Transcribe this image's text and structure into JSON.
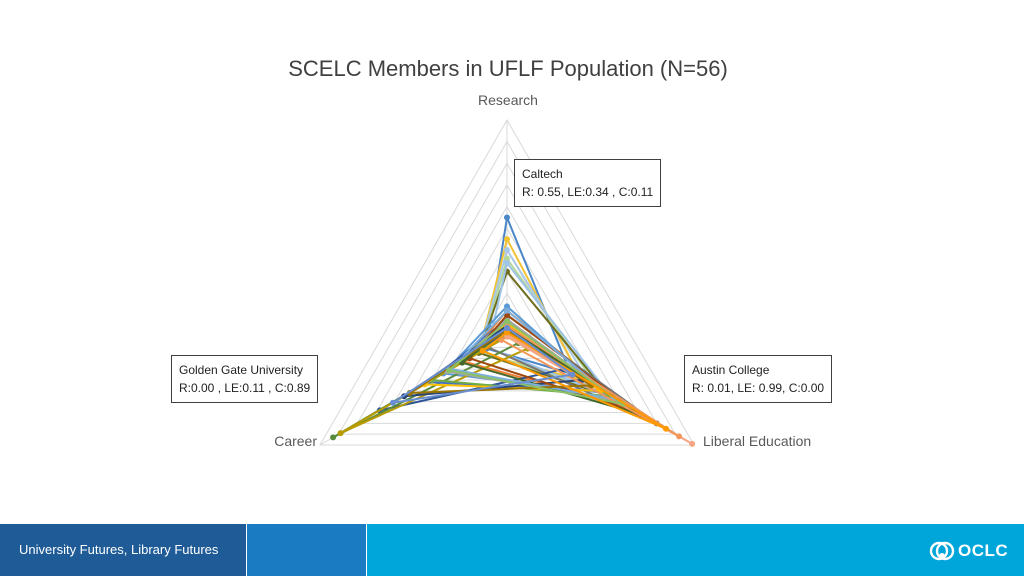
{
  "slide": {
    "footer_text": "University Futures, Library Futures",
    "logo_text": "OCLC"
  },
  "colors": {
    "footer_dark": "#1f5c97",
    "footer_mid": "#1a7ac2",
    "footer_light": "#00a5d9",
    "grid": "#d9d9d9"
  },
  "chart_data": {
    "type": "radar",
    "title": "SCELC Members in UFLF Population (N=56)",
    "axes": [
      "Research",
      "Liberal Education",
      "Career"
    ],
    "range": [
      0,
      1
    ],
    "gridlines": 10,
    "legend": "none",
    "callouts": [
      {
        "institution": "Caltech",
        "values_text": "R: 0.55, LE:0.34 , C:0.11"
      },
      {
        "institution": "Golden Gate University",
        "values_text": "R:0.00 , LE:0.11 , C:0.89"
      },
      {
        "institution": "Austin College",
        "values_text": "R: 0.01, LE: 0.99, C:0.00"
      }
    ],
    "series": [
      {
        "color": "#4a86c8",
        "values": [
          0.55,
          0.34,
          0.11
        ]
      },
      {
        "color": "#f2c233",
        "values": [
          0.45,
          0.4,
          0.15
        ]
      },
      {
        "color": "#a9c8e8",
        "values": [
          0.4,
          0.45,
          0.15
        ]
      },
      {
        "color": "#b4d79a",
        "values": [
          0.36,
          0.5,
          0.14
        ]
      },
      {
        "color": "#6e6e1e",
        "values": [
          0.3,
          0.55,
          0.15
        ]
      },
      {
        "color": "#9dc3e6",
        "values": [
          0.34,
          0.56,
          0.1
        ]
      },
      {
        "color": "#ed7d31",
        "values": [
          0.12,
          0.65,
          0.23
        ]
      },
      {
        "color": "#5b9bd5",
        "values": [
          0.14,
          0.52,
          0.34
        ]
      },
      {
        "color": "#767676",
        "values": [
          0.1,
          0.8,
          0.1
        ]
      },
      {
        "color": "#2e5597",
        "values": [
          0.02,
          0.3,
          0.68
        ]
      },
      {
        "color": "#5a8c3c",
        "values": [
          0.01,
          0.06,
          0.93
        ]
      },
      {
        "color": "#b89b00",
        "values": [
          0.0,
          0.11,
          0.89
        ]
      },
      {
        "color": "#f4a582",
        "values": [
          0.01,
          0.99,
          0.0
        ]
      },
      {
        "color": "#4472c4",
        "values": [
          0.08,
          0.5,
          0.42
        ]
      },
      {
        "color": "#70ad47",
        "values": [
          0.05,
          0.55,
          0.4
        ]
      },
      {
        "color": "#ffc000",
        "values": [
          0.06,
          0.5,
          0.44
        ]
      },
      {
        "color": "#a5a5a5",
        "values": [
          0.08,
          0.6,
          0.32
        ]
      },
      {
        "color": "#264478",
        "values": [
          0.05,
          0.4,
          0.55
        ]
      },
      {
        "color": "#9e480e",
        "values": [
          0.1,
          0.7,
          0.2
        ]
      },
      {
        "color": "#43682b",
        "values": [
          0.04,
          0.72,
          0.24
        ]
      },
      {
        "color": "#7cafdd",
        "values": [
          0.12,
          0.58,
          0.3
        ]
      },
      {
        "color": "#f1975a",
        "values": [
          0.05,
          0.92,
          0.03
        ]
      },
      {
        "color": "#997300",
        "values": [
          0.03,
          0.45,
          0.52
        ]
      },
      {
        "color": "#8cc168",
        "values": [
          0.07,
          0.62,
          0.31
        ]
      },
      {
        "color": "#ff9900",
        "values": [
          0.02,
          0.85,
          0.13
        ]
      },
      {
        "color": "#698ed0",
        "values": [
          0.04,
          0.35,
          0.61
        ]
      }
    ]
  }
}
